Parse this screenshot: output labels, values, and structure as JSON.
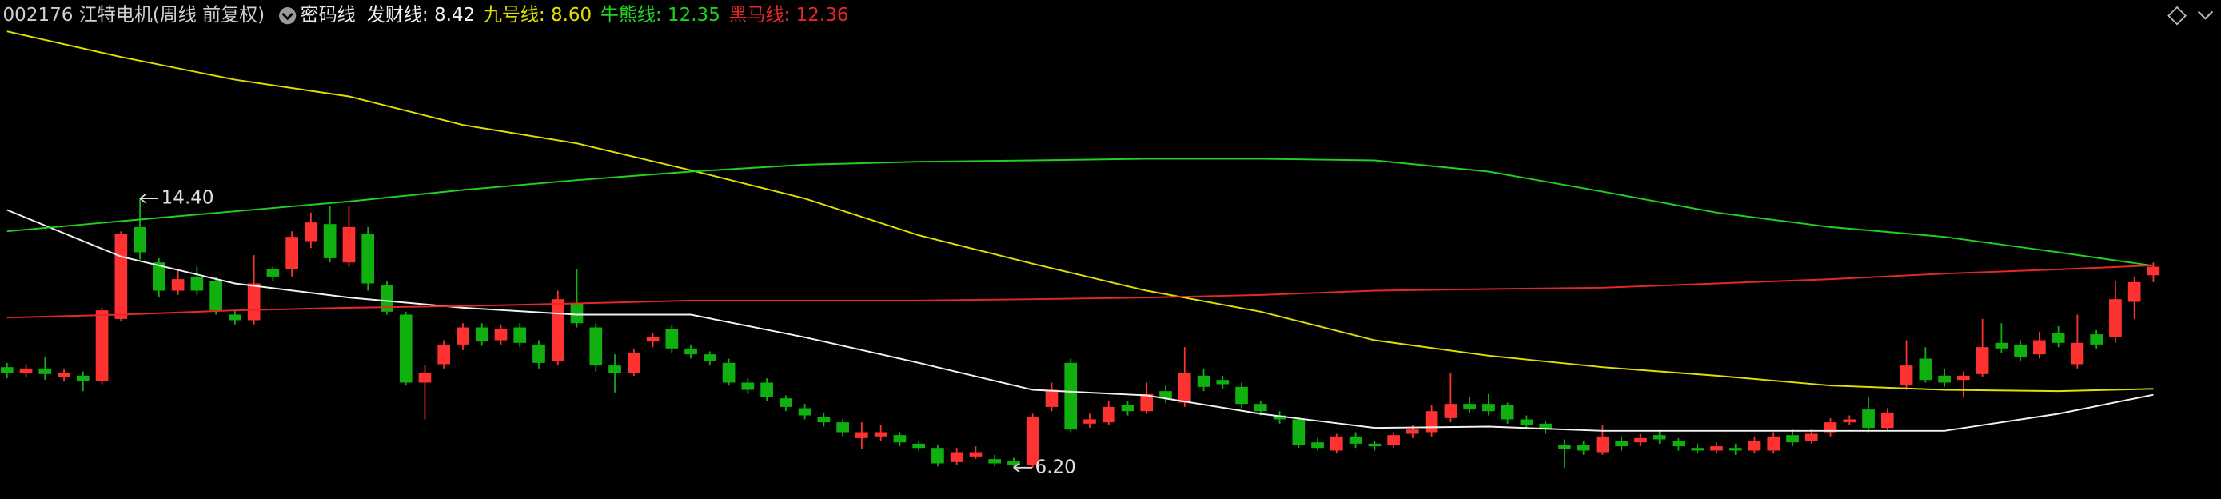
{
  "chart_data": {
    "type": "candlestick",
    "title": "002176 江特电机(周线 前复权)",
    "indicator": "密码线",
    "title_color": "#d0d0d0",
    "indicator_color": "#e8e8e8",
    "up_color": "#ff3232",
    "down_color": "#10b010",
    "ylim": [
      5.25,
      20.44
    ],
    "xlim": [
      -0.37,
      116.56
    ],
    "ohlc": [
      [
        9.26,
        9.39,
        8.92,
        9.09
      ],
      [
        9.09,
        9.35,
        8.96,
        9.22
      ],
      [
        9.22,
        9.57,
        8.87,
        9.05
      ],
      [
        8.96,
        9.22,
        8.83,
        9.09
      ],
      [
        9.0,
        9.13,
        8.53,
        8.83
      ],
      [
        8.83,
        11.07,
        8.74,
        10.99
      ],
      [
        10.73,
        13.4,
        10.65,
        13.32
      ],
      [
        13.53,
        14.4,
        12.54,
        12.76
      ],
      [
        12.45,
        12.58,
        11.38,
        11.59
      ],
      [
        11.59,
        12.24,
        11.46,
        11.94
      ],
      [
        12.02,
        12.32,
        11.46,
        11.59
      ],
      [
        11.89,
        12.02,
        10.86,
        10.99
      ],
      [
        10.86,
        10.99,
        10.56,
        10.69
      ],
      [
        10.69,
        12.67,
        10.56,
        11.81
      ],
      [
        12.24,
        12.32,
        11.89,
        12.02
      ],
      [
        12.24,
        13.4,
        12.02,
        13.23
      ],
      [
        13.1,
        13.97,
        12.89,
        13.67
      ],
      [
        13.62,
        14.18,
        12.45,
        12.58
      ],
      [
        12.45,
        14.18,
        12.32,
        13.53
      ],
      [
        13.32,
        13.53,
        11.59,
        11.81
      ],
      [
        11.77,
        11.89,
        10.86,
        10.95
      ],
      [
        10.86,
        10.95,
        8.7,
        8.79
      ],
      [
        8.79,
        9.31,
        7.67,
        9.09
      ],
      [
        9.35,
        10.08,
        9.22,
        9.95
      ],
      [
        9.95,
        10.6,
        9.78,
        10.47
      ],
      [
        10.47,
        10.6,
        9.91,
        10.04
      ],
      [
        10.08,
        10.56,
        9.95,
        10.43
      ],
      [
        10.47,
        10.6,
        9.87,
        10.0
      ],
      [
        9.95,
        10.08,
        9.22,
        9.39
      ],
      [
        9.44,
        11.59,
        9.31,
        11.33
      ],
      [
        11.2,
        12.24,
        10.47,
        10.6
      ],
      [
        10.47,
        10.6,
        9.13,
        9.31
      ],
      [
        9.31,
        9.65,
        8.49,
        9.09
      ],
      [
        9.09,
        9.83,
        9.0,
        9.7
      ],
      [
        10.04,
        10.3,
        9.87,
        10.17
      ],
      [
        10.43,
        10.56,
        9.7,
        9.83
      ],
      [
        9.83,
        9.95,
        9.52,
        9.65
      ],
      [
        9.65,
        9.74,
        9.31,
        9.44
      ],
      [
        9.39,
        9.52,
        8.7,
        8.79
      ],
      [
        8.79,
        8.92,
        8.44,
        8.57
      ],
      [
        8.79,
        8.92,
        8.23,
        8.36
      ],
      [
        8.31,
        8.4,
        7.92,
        8.05
      ],
      [
        8.01,
        8.14,
        7.67,
        7.79
      ],
      [
        7.75,
        7.88,
        7.45,
        7.58
      ],
      [
        7.58,
        7.67,
        7.15,
        7.28
      ],
      [
        7.1,
        7.58,
        6.76,
        7.28
      ],
      [
        7.15,
        7.49,
        7.02,
        7.28
      ],
      [
        7.19,
        7.28,
        6.85,
        6.97
      ],
      [
        6.93,
        7.02,
        6.72,
        6.8
      ],
      [
        6.8,
        6.89,
        6.24,
        6.33
      ],
      [
        6.37,
        6.8,
        6.28,
        6.67
      ],
      [
        6.54,
        6.85,
        6.46,
        6.67
      ],
      [
        6.46,
        6.59,
        6.24,
        6.33
      ],
      [
        6.41,
        6.5,
        6.2,
        6.28
      ],
      [
        6.28,
        7.84,
        6.2,
        7.75
      ],
      [
        8.05,
        8.79,
        7.92,
        8.57
      ],
      [
        9.39,
        9.52,
        7.28,
        7.36
      ],
      [
        7.54,
        7.84,
        7.41,
        7.67
      ],
      [
        7.58,
        8.23,
        7.49,
        8.05
      ],
      [
        8.1,
        8.23,
        7.79,
        7.92
      ],
      [
        7.92,
        8.79,
        7.84,
        8.44
      ],
      [
        8.53,
        8.7,
        8.18,
        8.31
      ],
      [
        8.18,
        9.87,
        8.05,
        9.09
      ],
      [
        9.0,
        9.22,
        8.53,
        8.66
      ],
      [
        8.87,
        9.0,
        8.61,
        8.74
      ],
      [
        8.66,
        8.79,
        8.01,
        8.14
      ],
      [
        8.14,
        8.23,
        7.79,
        7.92
      ],
      [
        7.79,
        7.92,
        7.54,
        7.67
      ],
      [
        7.67,
        7.75,
        6.8,
        6.89
      ],
      [
        6.97,
        7.1,
        6.72,
        6.8
      ],
      [
        6.72,
        7.23,
        6.63,
        7.15
      ],
      [
        7.15,
        7.28,
        6.8,
        6.93
      ],
      [
        6.93,
        7.02,
        6.72,
        6.85
      ],
      [
        6.89,
        7.28,
        6.8,
        7.19
      ],
      [
        7.23,
        7.49,
        7.1,
        7.36
      ],
      [
        7.28,
        8.1,
        7.15,
        7.92
      ],
      [
        7.71,
        9.09,
        7.58,
        8.14
      ],
      [
        8.14,
        8.36,
        7.88,
        7.97
      ],
      [
        8.14,
        8.44,
        7.79,
        7.92
      ],
      [
        8.1,
        8.18,
        7.54,
        7.67
      ],
      [
        7.67,
        7.79,
        7.41,
        7.49
      ],
      [
        7.54,
        7.62,
        7.23,
        7.36
      ],
      [
        6.89,
        7.06,
        6.2,
        6.76
      ],
      [
        6.89,
        7.02,
        6.59,
        6.72
      ],
      [
        6.67,
        7.49,
        6.59,
        7.15
      ],
      [
        7.02,
        7.15,
        6.72,
        6.85
      ],
      [
        6.97,
        7.23,
        6.85,
        7.1
      ],
      [
        7.19,
        7.32,
        6.93,
        7.06
      ],
      [
        7.02,
        7.1,
        6.72,
        6.85
      ],
      [
        6.8,
        6.93,
        6.63,
        6.72
      ],
      [
        6.72,
        6.97,
        6.63,
        6.85
      ],
      [
        6.8,
        6.93,
        6.59,
        6.72
      ],
      [
        6.72,
        7.15,
        6.63,
        7.02
      ],
      [
        6.72,
        7.28,
        6.63,
        7.15
      ],
      [
        7.19,
        7.36,
        6.85,
        6.97
      ],
      [
        7.02,
        7.36,
        6.93,
        7.23
      ],
      [
        7.28,
        7.71,
        7.15,
        7.58
      ],
      [
        7.58,
        7.79,
        7.49,
        7.67
      ],
      [
        7.97,
        8.36,
        7.28,
        7.41
      ],
      [
        7.41,
        8.01,
        7.32,
        7.88
      ],
      [
        8.7,
        10.08,
        8.57,
        9.31
      ],
      [
        9.52,
        9.87,
        8.79,
        8.87
      ],
      [
        9.0,
        9.22,
        8.66,
        8.79
      ],
      [
        8.87,
        9.13,
        8.36,
        9.0
      ],
      [
        9.05,
        10.73,
        8.96,
        9.87
      ],
      [
        10.0,
        10.6,
        9.7,
        9.83
      ],
      [
        9.95,
        10.08,
        9.44,
        9.57
      ],
      [
        9.65,
        10.34,
        9.52,
        10.08
      ],
      [
        10.3,
        10.51,
        9.87,
        10.0
      ],
      [
        9.35,
        10.86,
        9.22,
        10.0
      ],
      [
        10.26,
        10.39,
        9.83,
        9.95
      ],
      [
        10.17,
        11.89,
        10.0,
        11.33
      ],
      [
        11.25,
        12.02,
        10.73,
        11.85
      ],
      [
        12.06,
        12.45,
        11.85,
        12.32
      ]
    ],
    "series": [
      {
        "name": "发财线: 8.42",
        "color": "#f2f2f2",
        "x": [
          0,
          6,
          12,
          18,
          24,
          30,
          36,
          42,
          48,
          54,
          60,
          66,
          72,
          78,
          84,
          90,
          96,
          102,
          108,
          113
        ],
        "values": [
          14.05,
          12.63,
          11.81,
          11.38,
          11.07,
          10.86,
          10.86,
          10.17,
          9.39,
          8.57,
          8.4,
          7.84,
          7.41,
          7.45,
          7.32,
          7.32,
          7.32,
          7.32,
          7.84,
          8.42
        ]
      },
      {
        "name": "九号线: 8.60",
        "color": "#e0e000",
        "x": [
          0,
          6,
          12,
          18,
          24,
          30,
          36,
          42,
          48,
          54,
          60,
          66,
          72,
          78,
          84,
          90,
          96,
          102,
          108,
          113
        ],
        "values": [
          19.49,
          18.71,
          18.02,
          17.51,
          16.64,
          16.08,
          15.26,
          14.4,
          13.28,
          12.41,
          11.59,
          10.95,
          10.08,
          9.61,
          9.26,
          9.0,
          8.7,
          8.57,
          8.53,
          8.6
        ]
      },
      {
        "name": "牛熊线: 12.35",
        "color": "#22d022",
        "x": [
          0,
          6,
          12,
          18,
          24,
          30,
          36,
          42,
          48,
          54,
          60,
          66,
          72,
          78,
          84,
          90,
          96,
          102,
          108,
          113
        ],
        "values": [
          13.4,
          13.71,
          14.01,
          14.31,
          14.66,
          14.96,
          15.22,
          15.43,
          15.52,
          15.56,
          15.61,
          15.61,
          15.56,
          15.22,
          14.61,
          13.97,
          13.53,
          13.23,
          12.76,
          12.35
        ]
      },
      {
        "name": "黑马线: 12.36",
        "color": "#e82828",
        "x": [
          0,
          6,
          12,
          18,
          24,
          30,
          36,
          42,
          48,
          54,
          60,
          66,
          72,
          78,
          84,
          90,
          96,
          102,
          108,
          113
        ],
        "values": [
          10.77,
          10.86,
          10.99,
          11.07,
          11.12,
          11.2,
          11.29,
          11.29,
          11.29,
          11.33,
          11.38,
          11.46,
          11.59,
          11.64,
          11.68,
          11.81,
          11.94,
          12.11,
          12.24,
          12.36
        ]
      }
    ],
    "annotations": [
      {
        "x": 7,
        "value": 14.4,
        "label": "14.40"
      },
      {
        "x": 53,
        "value": 6.2,
        "label": "6.20"
      }
    ]
  }
}
